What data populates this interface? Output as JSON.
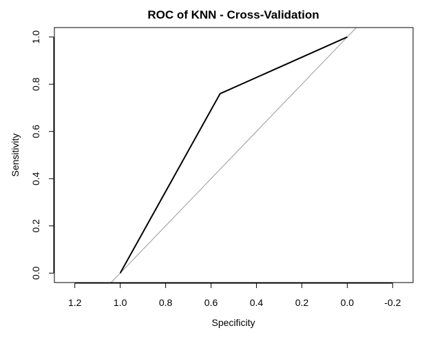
{
  "chart_data": {
    "type": "line",
    "title": "ROC of KNN - Cross-Validation",
    "xlabel": "Specificity",
    "ylabel": "Sensitivity",
    "x_reversed": true,
    "xlim": [
      1.29,
      -0.29
    ],
    "ylim": [
      -0.04,
      1.04
    ],
    "x_ticks": [
      1.2,
      1.0,
      0.8,
      0.6,
      0.4,
      0.2,
      0.0,
      -0.2
    ],
    "x_tick_labels": [
      "1.2",
      "1.0",
      "0.8",
      "0.6",
      "0.4",
      "0.2",
      "0.0",
      "-0.2"
    ],
    "y_ticks": [
      0.0,
      0.2,
      0.4,
      0.6,
      0.8,
      1.0
    ],
    "y_tick_labels": [
      "0.0",
      "0.2",
      "0.4",
      "0.6",
      "0.8",
      "1.0"
    ],
    "grid": false,
    "series": [
      {
        "x": [
          1.0,
          0.56,
          0.0
        ],
        "y": [
          0.0,
          0.76,
          1.0
        ],
        "color": "#000000"
      }
    ],
    "reference_line": {
      "description": "diagonal specificity + sensitivity = 1",
      "x": [
        1.04,
        -0.04
      ],
      "y": [
        -0.04,
        1.04
      ],
      "color": "#999999"
    }
  }
}
